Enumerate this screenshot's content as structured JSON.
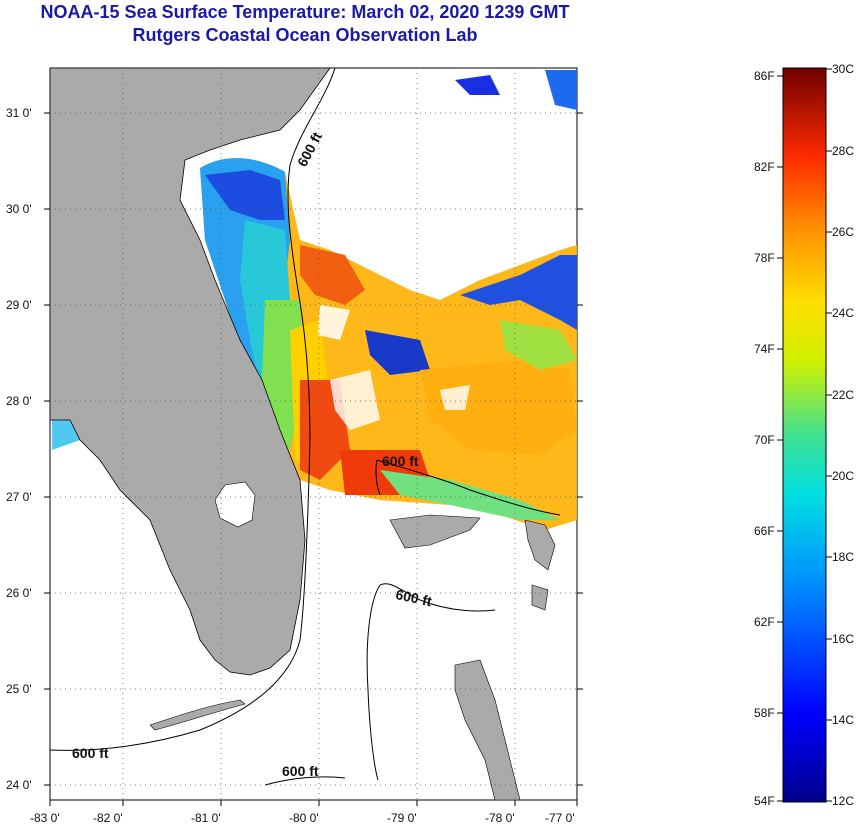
{
  "title_line1": "NOAA-15 Sea Surface Temperature:  March 02, 2020 1239 GMT",
  "title_line2": "Rutgers Coastal Ocean Observation Lab",
  "map": {
    "lon_labels": [
      "-83 0'",
      "-82 0'",
      "-81 0'",
      "-80 0'",
      "-79 0'",
      "-78 0'",
      "-77 0'"
    ],
    "lat_labels": [
      "31 0'",
      "30 0'",
      "29 0'",
      "28 0'",
      "27 0'",
      "26 0'",
      "25 0'",
      "24 0'"
    ],
    "contour_labels": [
      "600 ft",
      "600 ft",
      "600 ft",
      "600 ft",
      "600 ft"
    ],
    "colors": {
      "land": "#aaaaaa",
      "coast": "#000000"
    }
  },
  "colorbar": {
    "f_labels": [
      "86F",
      "82F",
      "78F",
      "74F",
      "70F",
      "66F",
      "62F",
      "58F",
      "54F"
    ],
    "c_labels": [
      "30C",
      "28C",
      "26C",
      "24C",
      "22C",
      "20C",
      "18C",
      "16C",
      "14C",
      "12C"
    ],
    "range_c": [
      12,
      30
    ]
  }
}
